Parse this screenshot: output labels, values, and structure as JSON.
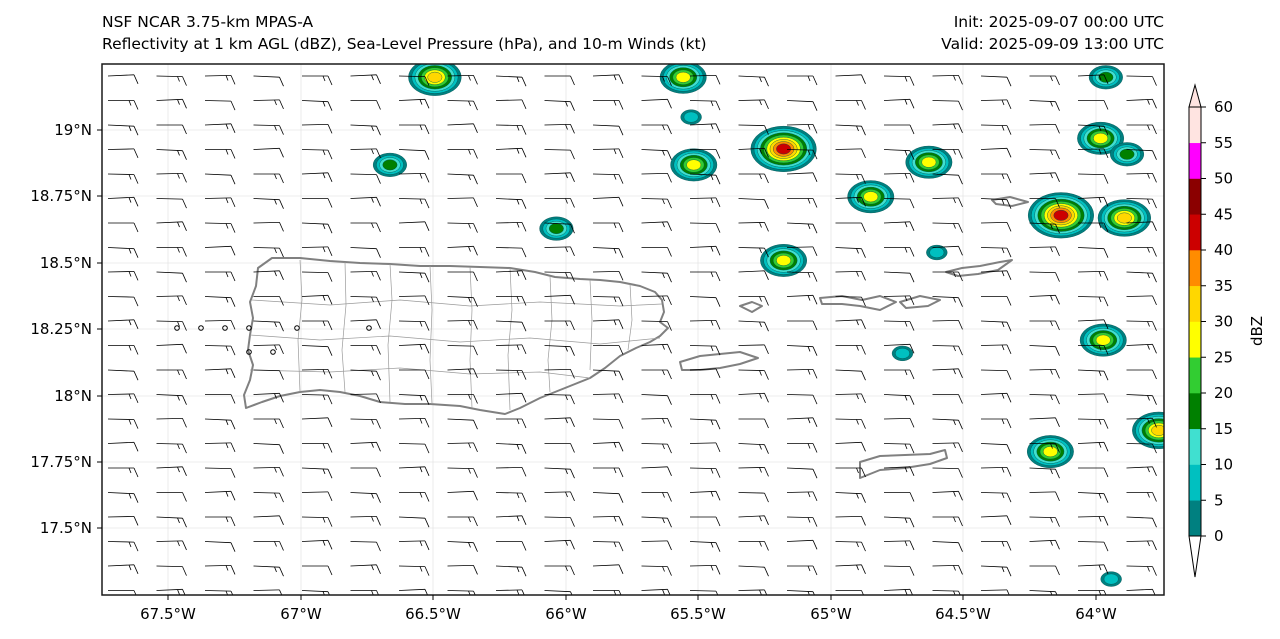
{
  "header": {
    "model_title": "NSF NCAR 3.75-km MPAS-A",
    "field_title": "Reflectivity at 1 km AGL (dBZ), Sea-Level Pressure (hPa), and 10-m Winds (kt)",
    "init_label": "Init: 2025-09-07 00:00 UTC",
    "valid_label": "Valid: 2025-09-09 13:00 UTC"
  },
  "map": {
    "lon_ticks": [
      "67.5°W",
      "67°W",
      "66.5°W",
      "66°W",
      "65.5°W",
      "65°W",
      "64.5°W",
      "64°W"
    ],
    "lat_ticks": [
      "19°N",
      "18.75°N",
      "18.5°N",
      "18.25°N",
      "18°N",
      "17.75°N",
      "17.5°N"
    ],
    "lon_range": [
      -67.8,
      -63.78
    ],
    "lat_range": [
      17.25,
      19.25
    ],
    "coastline_color": "#808080",
    "wind_barb_color": "#000000",
    "prevailing_wind": "easterly 10-15 kt"
  },
  "colorbar": {
    "label": "dBZ",
    "ticks": [
      "0",
      "5",
      "10",
      "15",
      "20",
      "25",
      "30",
      "35",
      "40",
      "45",
      "50",
      "55",
      "60"
    ],
    "colors": [
      "#008080",
      "#00c0c0",
      "#40e0d0",
      "#008000",
      "#32cd32",
      "#ffff00",
      "#ffd700",
      "#ff8c00",
      "#cc0000",
      "#8b0000",
      "#ff00ff",
      "#ffe4e1"
    ]
  },
  "echoes": [
    {
      "lon": -66.54,
      "lat": 19.2,
      "max_dbz": 35
    },
    {
      "lon": -66.71,
      "lat": 18.87,
      "max_dbz": 20
    },
    {
      "lon": -66.08,
      "lat": 18.63,
      "max_dbz": 20
    },
    {
      "lon": -65.6,
      "lat": 19.2,
      "max_dbz": 30
    },
    {
      "lon": -65.57,
      "lat": 19.05,
      "max_dbz": 10
    },
    {
      "lon": -65.56,
      "lat": 18.87,
      "max_dbz": 30
    },
    {
      "lon": -65.22,
      "lat": 18.93,
      "max_dbz": 45
    },
    {
      "lon": -65.22,
      "lat": 18.51,
      "max_dbz": 30
    },
    {
      "lon": -64.89,
      "lat": 18.75,
      "max_dbz": 30
    },
    {
      "lon": -64.67,
      "lat": 18.88,
      "max_dbz": 30
    },
    {
      "lon": -64.64,
      "lat": 18.54,
      "max_dbz": 10
    },
    {
      "lon": -64.77,
      "lat": 18.16,
      "max_dbz": 10
    },
    {
      "lon": -64.17,
      "lat": 18.68,
      "max_dbz": 45
    },
    {
      "lon": -63.93,
      "lat": 18.67,
      "max_dbz": 35
    },
    {
      "lon": -64.02,
      "lat": 18.97,
      "max_dbz": 30
    },
    {
      "lon": -63.92,
      "lat": 18.91,
      "max_dbz": 20
    },
    {
      "lon": -64.01,
      "lat": 18.21,
      "max_dbz": 30
    },
    {
      "lon": -64.21,
      "lat": 17.79,
      "max_dbz": 30
    },
    {
      "lon": -63.8,
      "lat": 17.87,
      "max_dbz": 35
    },
    {
      "lon": -63.98,
      "lat": 17.31,
      "max_dbz": 10
    },
    {
      "lon": -64.0,
      "lat": 19.2,
      "max_dbz": 20
    }
  ]
}
